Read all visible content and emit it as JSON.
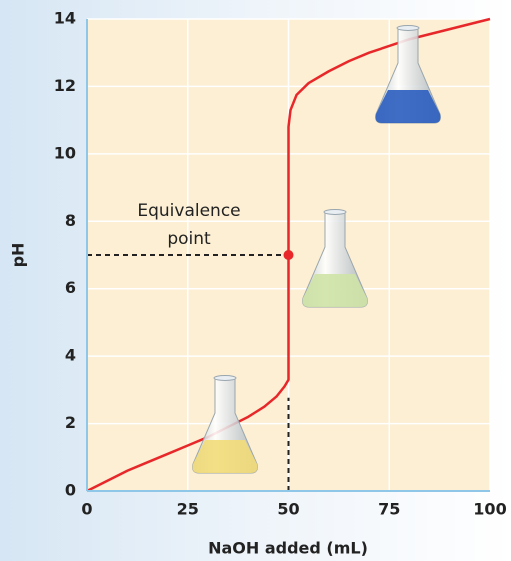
{
  "chart_data": {
    "type": "line",
    "x_label": "NaOH added (mL)",
    "y_label": "pH",
    "xlim": [
      0,
      100
    ],
    "ylim": [
      0,
      14
    ],
    "xticks": [
      0,
      25,
      50,
      75,
      100
    ],
    "yticks": [
      0,
      2,
      4,
      6,
      8,
      10,
      12,
      14
    ],
    "grid": true,
    "series": [
      {
        "color": "#e8272a",
        "x": [
          0,
          5,
          10,
          15,
          20,
          25,
          30,
          35,
          40,
          44,
          47,
          49,
          50,
          50,
          50,
          50.5,
          52,
          55,
          60,
          65,
          70,
          80,
          90,
          100
        ],
        "values": [
          0,
          0.3,
          0.6,
          0.85,
          1.1,
          1.35,
          1.6,
          1.9,
          2.2,
          2.5,
          2.8,
          3.1,
          3.3,
          7,
          10.8,
          11.3,
          11.75,
          12.1,
          12.45,
          12.75,
          13.0,
          13.4,
          13.7,
          14
        ]
      }
    ],
    "equivalence_point": {
      "x": 50,
      "y": 7,
      "color": "#e8272a",
      "label_lines": [
        "Equivalence",
        "point"
      ]
    }
  }
}
